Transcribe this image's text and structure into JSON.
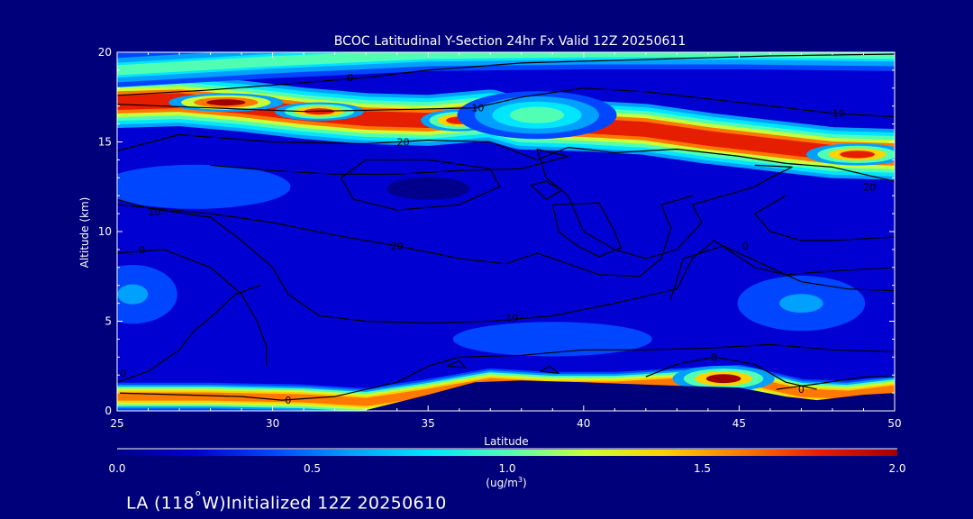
{
  "chart_data": {
    "type": "heatmap",
    "title": "BCOC Latitudinal Y-Section 24hr  Fx Valid 12Z 20250611",
    "xlabel": "Latitude",
    "ylabel": "Altitude (km)",
    "xlim": [
      25,
      50
    ],
    "ylim": [
      0,
      20
    ],
    "x_ticks": [
      "25",
      "30",
      "35",
      "40",
      "45",
      "50"
    ],
    "y_ticks": [
      "0",
      "5",
      "10",
      "15",
      "20"
    ],
    "colorbar": {
      "min": 0.0,
      "max": 2.0,
      "ticks": [
        "0.0",
        "0.5",
        "1.0",
        "1.5",
        "2.0"
      ],
      "units_main": "(ug/m",
      "units_sup": "3",
      "units_end": ")",
      "colors": [
        "#00008c",
        "#0000d2",
        "#0046ff",
        "#00a0ff",
        "#00e6ff",
        "#50ffb4",
        "#c8ff3c",
        "#ffd200",
        "#ff7800",
        "#e61e00",
        "#a00000"
      ]
    },
    "background_level": 0.25,
    "bands": [
      {
        "points": [
          [
            25,
            17.2
          ],
          [
            27,
            17.3
          ],
          [
            29,
            17.0
          ],
          [
            31,
            16.6
          ],
          [
            33,
            16.3
          ],
          [
            35,
            16.2
          ],
          [
            37,
            16.5
          ],
          [
            38,
            16.0
          ],
          [
            40,
            15.9
          ],
          [
            42,
            15.7
          ],
          [
            44,
            15.2
          ],
          [
            46,
            14.8
          ],
          [
            48,
            14.4
          ],
          [
            50,
            14.3
          ]
        ],
        "thickness": 2.4,
        "peak": 1.75
      },
      {
        "points": [
          [
            25,
            19.0
          ],
          [
            30,
            19.5
          ],
          [
            35,
            19.9
          ],
          [
            40,
            20.0
          ],
          [
            45,
            20.0
          ],
          [
            50,
            19.9
          ]
        ],
        "thickness": 1.6,
        "peak": 0.9
      },
      {
        "points": [
          [
            25,
            0.8
          ],
          [
            28,
            0.8
          ],
          [
            31,
            0.7
          ],
          [
            33,
            0.5
          ],
          [
            35,
            1.0
          ],
          [
            37,
            1.6
          ],
          [
            39,
            1.4
          ],
          [
            41,
            1.4
          ],
          [
            43,
            1.6
          ],
          [
            45,
            1.8
          ],
          [
            47,
            1.0
          ],
          [
            48.5,
            0.9
          ],
          [
            50,
            1.2
          ]
        ],
        "thickness": 1.3,
        "peak": 1.55
      }
    ],
    "blobs": [
      {
        "x": 44.5,
        "y": 1.8,
        "rx": 1.6,
        "ry": 0.7,
        "value": 1.9
      },
      {
        "x": 28.5,
        "y": 17.2,
        "rx": 1.8,
        "ry": 0.5,
        "value": 1.95
      },
      {
        "x": 31.5,
        "y": 16.7,
        "rx": 1.4,
        "ry": 0.5,
        "value": 1.85
      },
      {
        "x": 36.0,
        "y": 16.2,
        "rx": 1.2,
        "ry": 0.6,
        "value": 1.7
      },
      {
        "x": 48.8,
        "y": 14.3,
        "rx": 1.6,
        "ry": 0.6,
        "value": 1.85
      },
      {
        "x": 38.5,
        "y": 16.5,
        "rx": 2.5,
        "ry": 1.3,
        "value": 1.0
      },
      {
        "x": 27.5,
        "y": 12.5,
        "rx": 3.0,
        "ry": 1.2,
        "value": 0.45
      },
      {
        "x": 35.0,
        "y": 12.4,
        "rx": 2.3,
        "ry": 1.1,
        "value": 0.05
      },
      {
        "x": 39.5,
        "y": 10.5,
        "rx": 1.2,
        "ry": 1.6,
        "value": 0.1
      },
      {
        "x": 46.5,
        "y": 11.5,
        "rx": 1.6,
        "ry": 1.6,
        "value": 0.1
      },
      {
        "x": 25.5,
        "y": 6.5,
        "rx": 1.4,
        "ry": 1.6,
        "value": 0.55
      },
      {
        "x": 47.0,
        "y": 6.0,
        "rx": 2.0,
        "ry": 1.5,
        "value": 0.5
      },
      {
        "x": 39.0,
        "y": 4.0,
        "rx": 4.0,
        "ry": 1.2,
        "value": 0.4
      },
      {
        "x": 30.0,
        "y": 5.0,
        "rx": 3.0,
        "ry": 1.5,
        "value": 0.1
      }
    ],
    "terrain": [
      [
        32.9,
        0
      ],
      [
        35,
        0.9
      ],
      [
        36.5,
        1.6
      ],
      [
        38,
        1.7
      ],
      [
        40,
        1.6
      ],
      [
        43,
        1.4
      ],
      [
        45,
        1.3
      ],
      [
        46.5,
        0.8
      ],
      [
        47.5,
        0.6
      ],
      [
        49,
        0.9
      ],
      [
        50,
        1.0
      ],
      [
        50,
        0
      ]
    ],
    "contours": [
      {
        "label": "0",
        "label_at": [
          32.5,
          18.6
        ],
        "points": [
          [
            25,
            17.6
          ],
          [
            28,
            17.9
          ],
          [
            31,
            18.3
          ],
          [
            33,
            18.6
          ],
          [
            35,
            19.0
          ],
          [
            38,
            19.4
          ],
          [
            42,
            19.6
          ],
          [
            46,
            19.8
          ],
          [
            50,
            19.9
          ]
        ]
      },
      {
        "label": "10",
        "label_at": [
          36.6,
          16.9
        ],
        "points": [
          [
            25,
            17.1
          ],
          [
            28,
            16.9
          ],
          [
            31,
            16.7
          ],
          [
            34,
            16.8
          ],
          [
            36.5,
            16.9
          ],
          [
            38,
            17.5
          ],
          [
            40,
            18.0
          ],
          [
            42,
            17.8
          ],
          [
            45,
            17.2
          ],
          [
            48,
            16.6
          ],
          [
            50,
            16.4
          ]
        ]
      },
      {
        "label": "10",
        "label_at": [
          48.2,
          16.6
        ],
        "points": []
      },
      {
        "label": "20",
        "label_at": [
          34.2,
          15.0
        ],
        "points": [
          [
            25,
            14.5
          ],
          [
            27,
            15.4
          ],
          [
            30,
            15.0
          ],
          [
            33,
            14.9
          ],
          [
            35,
            15.1
          ],
          [
            37,
            15.0
          ],
          [
            38.5,
            14.0
          ],
          [
            39.5,
            14.7
          ],
          [
            41,
            14.4
          ],
          [
            43,
            14.6
          ],
          [
            45,
            14.2
          ],
          [
            46.5,
            13.8
          ],
          [
            48,
            13.6
          ],
          [
            50,
            12.8
          ]
        ]
      },
      {
        "label": "20",
        "label_at": [
          49.2,
          12.5
        ],
        "points": []
      },
      {
        "label": "",
        "label_at": null,
        "points": [
          [
            28,
            13.7
          ],
          [
            30,
            13.4
          ],
          [
            32,
            13.2
          ],
          [
            34,
            13.2
          ],
          [
            36,
            13.4
          ],
          [
            38,
            13.5
          ],
          [
            39.5,
            14.2
          ],
          [
            38.5,
            14.6
          ],
          [
            38.8,
            13.0
          ],
          [
            39.5,
            12.0
          ],
          [
            40,
            10.0
          ],
          [
            41,
            9.0
          ],
          [
            42,
            8.5
          ],
          [
            43,
            9.0
          ],
          [
            43.8,
            10.5
          ],
          [
            43.5,
            11.5
          ],
          [
            44.5,
            12.0
          ],
          [
            45.5,
            12.5
          ],
          [
            46,
            13.0
          ],
          [
            46.7,
            13.6
          ],
          [
            45.5,
            13.7
          ]
        ]
      },
      {
        "label": "",
        "label_at": null,
        "points": [
          [
            32.2,
            13.0
          ],
          [
            33,
            14.0
          ],
          [
            35,
            14.0
          ],
          [
            37,
            13.5
          ],
          [
            37.3,
            12.5
          ],
          [
            36,
            11.5
          ],
          [
            34,
            11.2
          ],
          [
            32.6,
            11.8
          ],
          [
            32.2,
            13.0
          ]
        ]
      },
      {
        "label": "",
        "label_at": null,
        "points": [
          [
            38.3,
            12.6
          ],
          [
            38.8,
            12.8
          ],
          [
            39.3,
            12.3
          ],
          [
            38.8,
            11.8
          ],
          [
            38.3,
            12.6
          ]
        ]
      },
      {
        "label": "",
        "label_at": null,
        "points": [
          [
            39.0,
            11.5
          ],
          [
            40.5,
            11.6
          ],
          [
            41.0,
            10.0
          ],
          [
            41.2,
            9.1
          ],
          [
            40.5,
            8.6
          ],
          [
            39.8,
            9.2
          ],
          [
            39.2,
            10.0
          ],
          [
            39.0,
            11.5
          ]
        ]
      },
      {
        "label": "20",
        "label_at": [
          34.0,
          9.2
        ],
        "points": [
          [
            25,
            11.5
          ],
          [
            28,
            11.0
          ],
          [
            30,
            10.5
          ],
          [
            32,
            9.8
          ],
          [
            34,
            9.2
          ],
          [
            36,
            8.5
          ],
          [
            37.5,
            8.2
          ],
          [
            38.5,
            8.8
          ],
          [
            39,
            8.5
          ],
          [
            40.5,
            7.6
          ],
          [
            41.8,
            7.5
          ],
          [
            42.5,
            8.5
          ],
          [
            42.8,
            10.2
          ],
          [
            42.5,
            11.5
          ],
          [
            43.5,
            12.0
          ]
        ]
      },
      {
        "label": "",
        "label_at": null,
        "points": [
          [
            46.5,
            12.0
          ],
          [
            45.5,
            11.0
          ],
          [
            46,
            10.0
          ],
          [
            47,
            9.5
          ],
          [
            48,
            9.5
          ],
          [
            49,
            9.6
          ],
          [
            50,
            9.7
          ]
        ]
      },
      {
        "label": "10",
        "label_at": [
          26.2,
          11.1
        ],
        "points": [
          [
            25,
            11.8
          ],
          [
            26,
            11.3
          ],
          [
            28,
            10.8
          ],
          [
            29,
            9.5
          ],
          [
            30,
            8.0
          ],
          [
            30.5,
            6.5
          ],
          [
            31.5,
            5.3
          ],
          [
            33,
            5.0
          ],
          [
            35,
            4.9
          ],
          [
            37,
            5.0
          ],
          [
            39,
            5.3
          ],
          [
            41,
            6.0
          ],
          [
            43,
            6.8
          ],
          [
            43.5,
            8.5
          ],
          [
            44.2,
            9.5
          ],
          [
            45.5,
            8.0
          ],
          [
            46.5,
            7.6
          ],
          [
            48,
            7.8
          ],
          [
            50,
            8.0
          ]
        ]
      },
      {
        "label": "10",
        "label_at": [
          37.7,
          5.2
        ],
        "points": []
      },
      {
        "label": "0",
        "label_at": [
          25.8,
          9.0
        ],
        "points": [
          [
            25,
            8.8
          ],
          [
            26.5,
            9.0
          ],
          [
            28.0,
            8.0
          ],
          [
            29.0,
            6.5
          ],
          [
            29.5,
            5.0
          ],
          [
            29.8,
            3.6
          ],
          [
            29.8,
            2.5
          ]
        ]
      },
      {
        "label": "0",
        "label_at": [
          45.2,
          9.2
        ],
        "points": [
          [
            42.8,
            6.2
          ],
          [
            43.2,
            8.5
          ],
          [
            44.5,
            9.2
          ],
          [
            46,
            8.0
          ],
          [
            47,
            7.2
          ],
          [
            48.5,
            6.8
          ],
          [
            50,
            6.7
          ]
        ]
      },
      {
        "label": "0",
        "label_at": [
          25.2,
          2.1
        ],
        "points": [
          [
            25,
            1.6
          ],
          [
            26,
            2.2
          ],
          [
            27,
            3.4
          ],
          [
            27.5,
            4.5
          ],
          [
            28,
            5.2
          ],
          [
            28.8,
            6.5
          ],
          [
            29.6,
            7.0
          ]
        ]
      },
      {
        "label": "0",
        "label_at": [
          30.5,
          0.6
        ],
        "points": [
          [
            25,
            1.0
          ],
          [
            27,
            0.9
          ],
          [
            29,
            0.8
          ],
          [
            30.3,
            0.6
          ],
          [
            32,
            0.8
          ],
          [
            34,
            1.6
          ],
          [
            35,
            2.5
          ],
          [
            36,
            3.0
          ],
          [
            38,
            3.1
          ],
          [
            40,
            3.4
          ],
          [
            42,
            3.4
          ],
          [
            44,
            3.5
          ],
          [
            46,
            3.7
          ],
          [
            48,
            3.4
          ],
          [
            50,
            3.3
          ]
        ]
      },
      {
        "label": "0",
        "label_at": [
          44.2,
          3.0
        ],
        "points": [
          [
            42,
            1.9
          ],
          [
            43,
            2.6
          ],
          [
            44.2,
            3.0
          ],
          [
            45.5,
            2.6
          ],
          [
            46.5,
            1.6
          ],
          [
            47.5,
            1.2
          ]
        ]
      },
      {
        "label": "0",
        "label_at": [
          47.0,
          1.2
        ],
        "points": [
          [
            46.2,
            1.2
          ],
          [
            47.5,
            1.5
          ],
          [
            49,
            1.9
          ],
          [
            50,
            1.9
          ]
        ]
      },
      {
        "label": "",
        "label_at": null,
        "points": [
          [
            35.6,
            2.5
          ],
          [
            36.0,
            2.8
          ],
          [
            36.2,
            2.4
          ],
          [
            35.6,
            2.5
          ]
        ]
      },
      {
        "label": "",
        "label_at": null,
        "points": [
          [
            38.6,
            2.2
          ],
          [
            38.9,
            2.5
          ],
          [
            39.2,
            2.1
          ],
          [
            38.6,
            2.2
          ]
        ]
      }
    ]
  },
  "footer": {
    "lead": "LA (118",
    "degree": "°",
    "tail": "W)Initialized 12Z 20250610"
  }
}
